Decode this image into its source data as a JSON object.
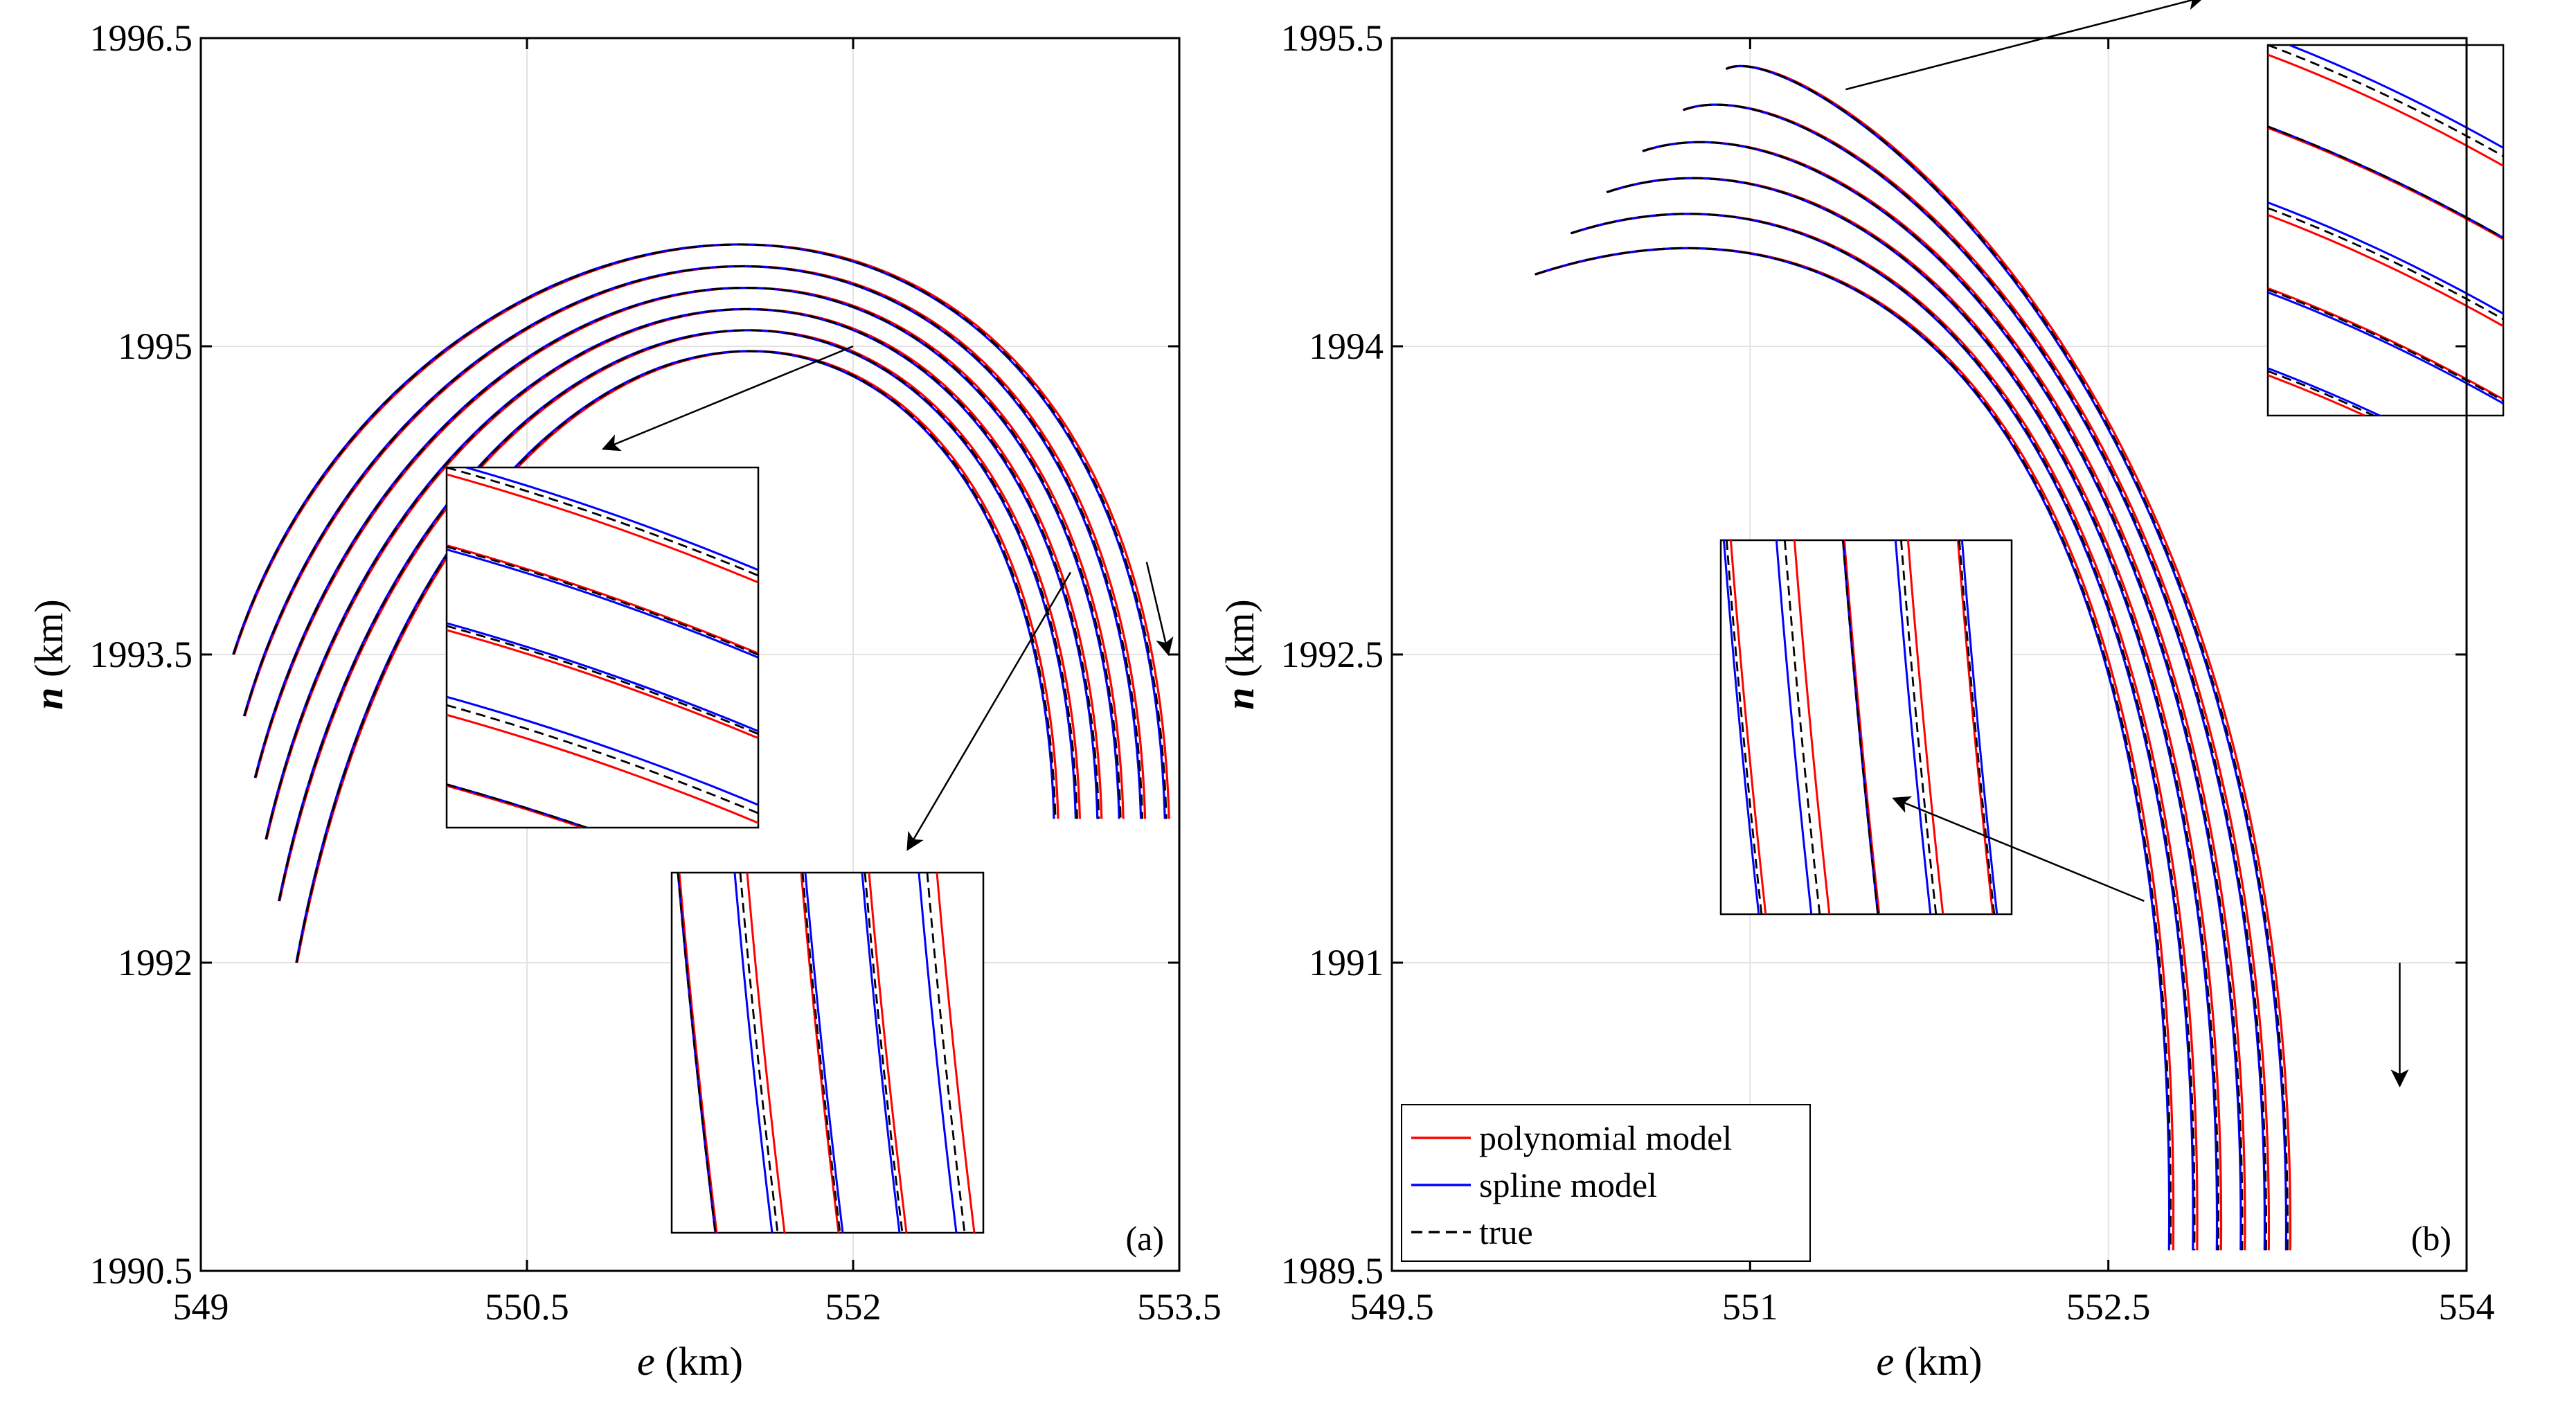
{
  "chart_data": [
    {
      "type": "line",
      "panel_label": "(a)",
      "xlabel": {
        "var": "e",
        "unit": " (km)"
      },
      "ylabel": {
        "var": "n",
        "unit": " (km)"
      },
      "xlim": [
        549,
        553.5
      ],
      "ylim": [
        1990.5,
        1996.5
      ],
      "x_ticks": [
        {
          "value": 549,
          "label": "549"
        },
        {
          "value": 550.5,
          "label": "550.5"
        },
        {
          "value": 552,
          "label": "552"
        },
        {
          "value": 553.5,
          "label": "553.5"
        }
      ],
      "y_ticks": [
        {
          "value": 1990.5,
          "label": "1990.5"
        },
        {
          "value": 1992,
          "label": "1992"
        },
        {
          "value": 1993.5,
          "label": "1993.5"
        },
        {
          "value": 1995,
          "label": "1995"
        },
        {
          "value": 1996.5,
          "label": "1996.5"
        }
      ],
      "grid": true,
      "trajectory_shape": "arc",
      "trajectories": [
        {
          "start": [
            549.15,
            1993.5
          ],
          "apex": [
            551.35,
            1995.45
          ],
          "end": [
            553.44,
            1992.7
          ]
        },
        {
          "start": [
            549.2,
            1993.2
          ],
          "apex": [
            551.35,
            1995.35
          ],
          "end": [
            553.33,
            1992.7
          ]
        },
        {
          "start": [
            549.25,
            1992.9
          ],
          "apex": [
            551.35,
            1995.25
          ],
          "end": [
            553.23,
            1992.7
          ]
        },
        {
          "start": [
            549.3,
            1992.6
          ],
          "apex": [
            551.35,
            1995.15
          ],
          "end": [
            553.13,
            1992.7
          ]
        },
        {
          "start": [
            549.36,
            1992.3
          ],
          "apex": [
            551.35,
            1995.05
          ],
          "end": [
            553.03,
            1992.7
          ]
        },
        {
          "start": [
            549.44,
            1992.0
          ],
          "apex": [
            551.35,
            1994.95
          ],
          "end": [
            552.93,
            1992.7
          ]
        }
      ],
      "direction_arrow": {
        "from": [
          553.35,
          1993.95
        ],
        "to": [
          553.45,
          1993.5
        ]
      },
      "zoom_insets": [
        {
          "pointer_from": [
            552.0,
            1995.0
          ],
          "pointer_to": [
            550.85,
            1994.5
          ]
        },
        {
          "pointer_from": [
            553.0,
            1993.9
          ],
          "pointer_to": [
            552.25,
            1992.55
          ]
        }
      ],
      "series": [
        {
          "name": "",
          "color": "#ff0000",
          "dash": "solid"
        },
        {
          "name": "",
          "color": "#0000ff",
          "dash": "solid"
        },
        {
          "name": "",
          "color": "#000000",
          "dash": "dashed"
        }
      ]
    },
    {
      "type": "line",
      "panel_label": "(b)",
      "xlabel": {
        "var": "e",
        "unit": " (km)"
      },
      "ylabel": {
        "var": "n",
        "unit": " (km)"
      },
      "xlim": [
        549.5,
        554
      ],
      "ylim": [
        1989.5,
        1995.5
      ],
      "x_ticks": [
        {
          "value": 549.5,
          "label": "549.5"
        },
        {
          "value": 551,
          "label": "551"
        },
        {
          "value": 552.5,
          "label": "552.5"
        },
        {
          "value": 554,
          "label": "554"
        }
      ],
      "y_ticks": [
        {
          "value": 1989.5,
          "label": "1989.5"
        },
        {
          "value": 1991,
          "label": "1991"
        },
        {
          "value": 1992.5,
          "label": "1992.5"
        },
        {
          "value": 1994,
          "label": "1994"
        },
        {
          "value": 1995.5,
          "label": "1995.5"
        }
      ],
      "grid": true,
      "trajectory_shape": "bend",
      "trajectories": [
        {
          "start": [
            550.9,
            1995.35
          ],
          "apex": [
            551.1,
            1995.38
          ],
          "end": [
            553.25,
            1989.6
          ]
        },
        {
          "start": [
            550.72,
            1995.15
          ],
          "apex": [
            551.1,
            1995.25
          ],
          "end": [
            553.16,
            1989.6
          ]
        },
        {
          "start": [
            550.55,
            1994.95
          ],
          "apex": [
            551.1,
            1995.13
          ],
          "end": [
            553.06,
            1989.6
          ]
        },
        {
          "start": [
            550.4,
            1994.75
          ],
          "apex": [
            551.1,
            1995.02
          ],
          "end": [
            552.96,
            1989.6
          ]
        },
        {
          "start": [
            550.25,
            1994.55
          ],
          "apex": [
            551.1,
            1994.9
          ],
          "end": [
            552.86,
            1989.6
          ]
        },
        {
          "start": [
            550.1,
            1994.35
          ],
          "apex": [
            551.1,
            1994.79
          ],
          "end": [
            552.76,
            1989.6
          ]
        }
      ],
      "direction_arrow": {
        "from": [
          553.72,
          1991.0
        ],
        "to": [
          553.72,
          1990.4
        ]
      },
      "zoom_insets": [
        {
          "pointer_from": [
            551.4,
            1995.25
          ],
          "pointer_to": [
            552.9,
            1995.7
          ]
        },
        {
          "pointer_from": [
            552.65,
            1991.3
          ],
          "pointer_to": [
            551.6,
            1991.8
          ]
        }
      ],
      "legend": {
        "position": "bottom-left",
        "location": "inside"
      },
      "series": [
        {
          "name": "polynomial model",
          "color": "#ff0000",
          "dash": "solid"
        },
        {
          "name": "spline model",
          "color": "#0000ff",
          "dash": "solid"
        },
        {
          "name": "true",
          "color": "#000000",
          "dash": "dashed"
        }
      ]
    }
  ]
}
